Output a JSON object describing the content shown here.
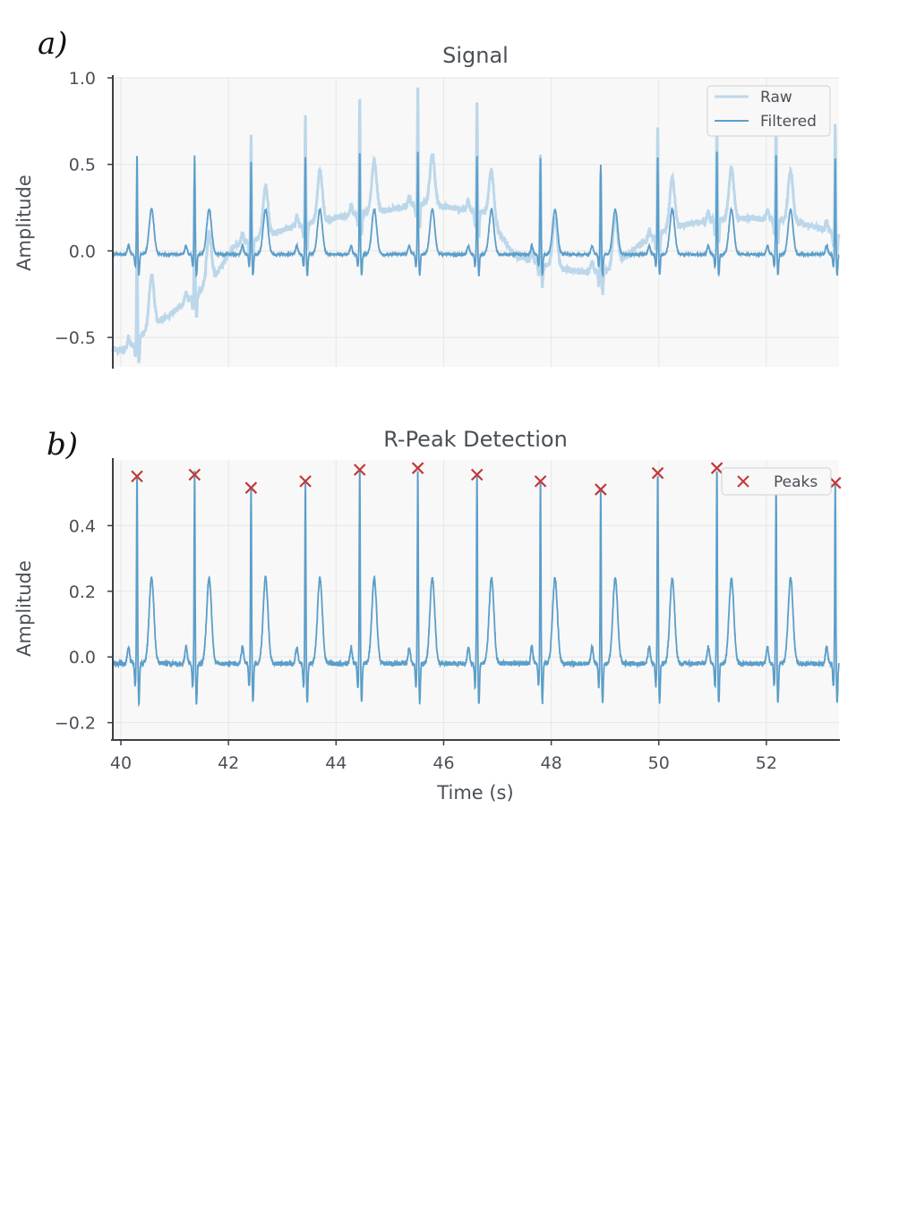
{
  "chart_data": [
    {
      "panel_label": "a)",
      "type": "line",
      "title": "Signal",
      "xlabel": "",
      "ylabel": "Amplitude",
      "xlim": [
        39.85,
        53.35
      ],
      "ylim": [
        -0.67,
        1.0
      ],
      "yticks": [
        -0.5,
        0.0,
        0.5,
        1.0
      ],
      "ytick_labels": [
        "−0.5",
        "0.0",
        "0.5",
        "1.0"
      ],
      "xticks": [
        40,
        42,
        44,
        46,
        48,
        50,
        52
      ],
      "show_xtick_labels": false,
      "grid": true,
      "legend_position": "top-right",
      "colors": {
        "raw": "#bcd7ea",
        "filtered": "#5b9ec9"
      },
      "r_peak_times": [
        40.3,
        41.37,
        42.42,
        43.43,
        44.44,
        45.52,
        46.62,
        47.8,
        48.92,
        49.98,
        51.08,
        52.18,
        53.28
      ],
      "r_peak_amplitudes": [
        0.55,
        0.55,
        0.52,
        0.54,
        0.57,
        0.58,
        0.55,
        0.54,
        0.5,
        0.55,
        0.58,
        0.56,
        0.54
      ],
      "raw_baseline": {
        "t": [
          39.85,
          40.1,
          40.35,
          40.6,
          40.9,
          41.3,
          41.7,
          42.1,
          42.6,
          43.2,
          43.8,
          44.4,
          45.0,
          45.6,
          46.2,
          46.8,
          47.3,
          47.7,
          48.1,
          48.6,
          49.1,
          49.6,
          50.1,
          50.6,
          51.2,
          51.8,
          52.4,
          52.9,
          53.35
        ],
        "v": [
          -0.55,
          -0.55,
          -0.48,
          -0.4,
          -0.35,
          -0.25,
          -0.15,
          0.05,
          0.1,
          0.16,
          0.2,
          0.24,
          0.26,
          0.3,
          0.27,
          0.24,
          0.0,
          -0.04,
          -0.08,
          -0.1,
          -0.09,
          0.05,
          0.14,
          0.18,
          0.21,
          0.21,
          0.2,
          0.16,
          0.12
        ]
      },
      "series": [
        {
          "name": "Raw",
          "style": "light-thick"
        },
        {
          "name": "Filtered",
          "style": "dark-thin"
        }
      ],
      "legend": [
        "Raw",
        "Filtered"
      ]
    },
    {
      "panel_label": "b)",
      "type": "line",
      "title": "R-Peak Detection",
      "xlabel": "Time (s)",
      "ylabel": "Amplitude",
      "xlim": [
        39.85,
        53.35
      ],
      "ylim": [
        -0.25,
        0.6
      ],
      "yticks": [
        -0.2,
        0.0,
        0.2,
        0.4
      ],
      "ytick_labels": [
        "−0.2",
        "0.0",
        "0.2",
        "0.4"
      ],
      "xticks": [
        40,
        42,
        44,
        46,
        48,
        50,
        52
      ],
      "xtick_labels": [
        "40",
        "42",
        "44",
        "46",
        "48",
        "50",
        "52"
      ],
      "grid": true,
      "legend_position": "top-right",
      "colors": {
        "signal": "#5b9ec9",
        "peaks": "#c0393b"
      },
      "peaks": {
        "t": [
          40.3,
          41.37,
          42.42,
          43.43,
          44.44,
          45.52,
          46.62,
          47.8,
          48.92,
          49.98,
          51.08,
          52.18,
          53.28
        ],
        "v": [
          0.55,
          0.555,
          0.515,
          0.535,
          0.57,
          0.575,
          0.555,
          0.535,
          0.51,
          0.56,
          0.575,
          0.54,
          0.53
        ]
      },
      "series": [
        {
          "name": "Peaks",
          "marker": "x"
        }
      ],
      "legend": [
        "Peaks"
      ]
    }
  ]
}
